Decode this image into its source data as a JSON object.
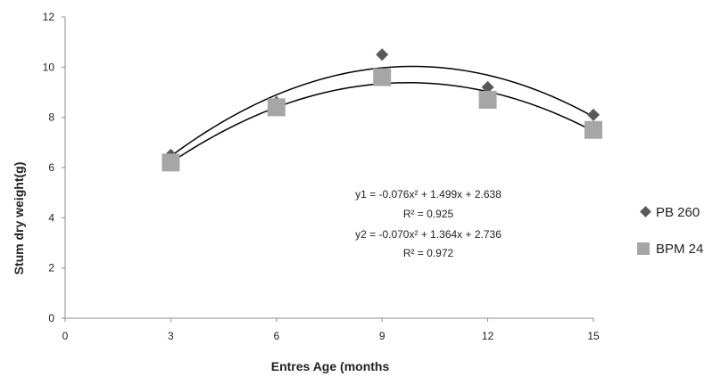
{
  "chart_data": {
    "type": "scatter",
    "xlabel": "Entres Age (months",
    "ylabel": "Stum dry weight(g)",
    "xlim": [
      0,
      15
    ],
    "ylim": [
      0,
      12
    ],
    "xticks": [
      "0",
      "3",
      "6",
      "9",
      "12",
      "15"
    ],
    "yticks": [
      "0",
      "2",
      "4",
      "6",
      "8",
      "10",
      "12"
    ],
    "grid": false,
    "legend_position": "right",
    "series": [
      {
        "name": "PB 260",
        "marker": "diamond",
        "color": "#595959",
        "x": [
          3,
          6,
          9,
          12,
          15
        ],
        "y": [
          6.5,
          8.6,
          10.5,
          9.2,
          8.1
        ],
        "trendline": {
          "a": -0.076,
          "b": 1.499,
          "c": 2.638
        }
      },
      {
        "name": "BPM 24",
        "marker": "square",
        "color": "#a6a6a6",
        "x": [
          3,
          6,
          9,
          12,
          15
        ],
        "y": [
          6.2,
          8.4,
          9.6,
          8.7,
          7.5
        ],
        "trendline": {
          "a": -0.07,
          "b": 1.364,
          "c": 2.736
        }
      }
    ],
    "annotations": [
      {
        "equation": "y1 = -0.076x² + 1.499x + 2.638",
        "r2": "R² = 0.925"
      },
      {
        "equation": "y2 = -0.070x² + 1.364x + 2.736",
        "r2": "R² = 0.972"
      }
    ]
  }
}
